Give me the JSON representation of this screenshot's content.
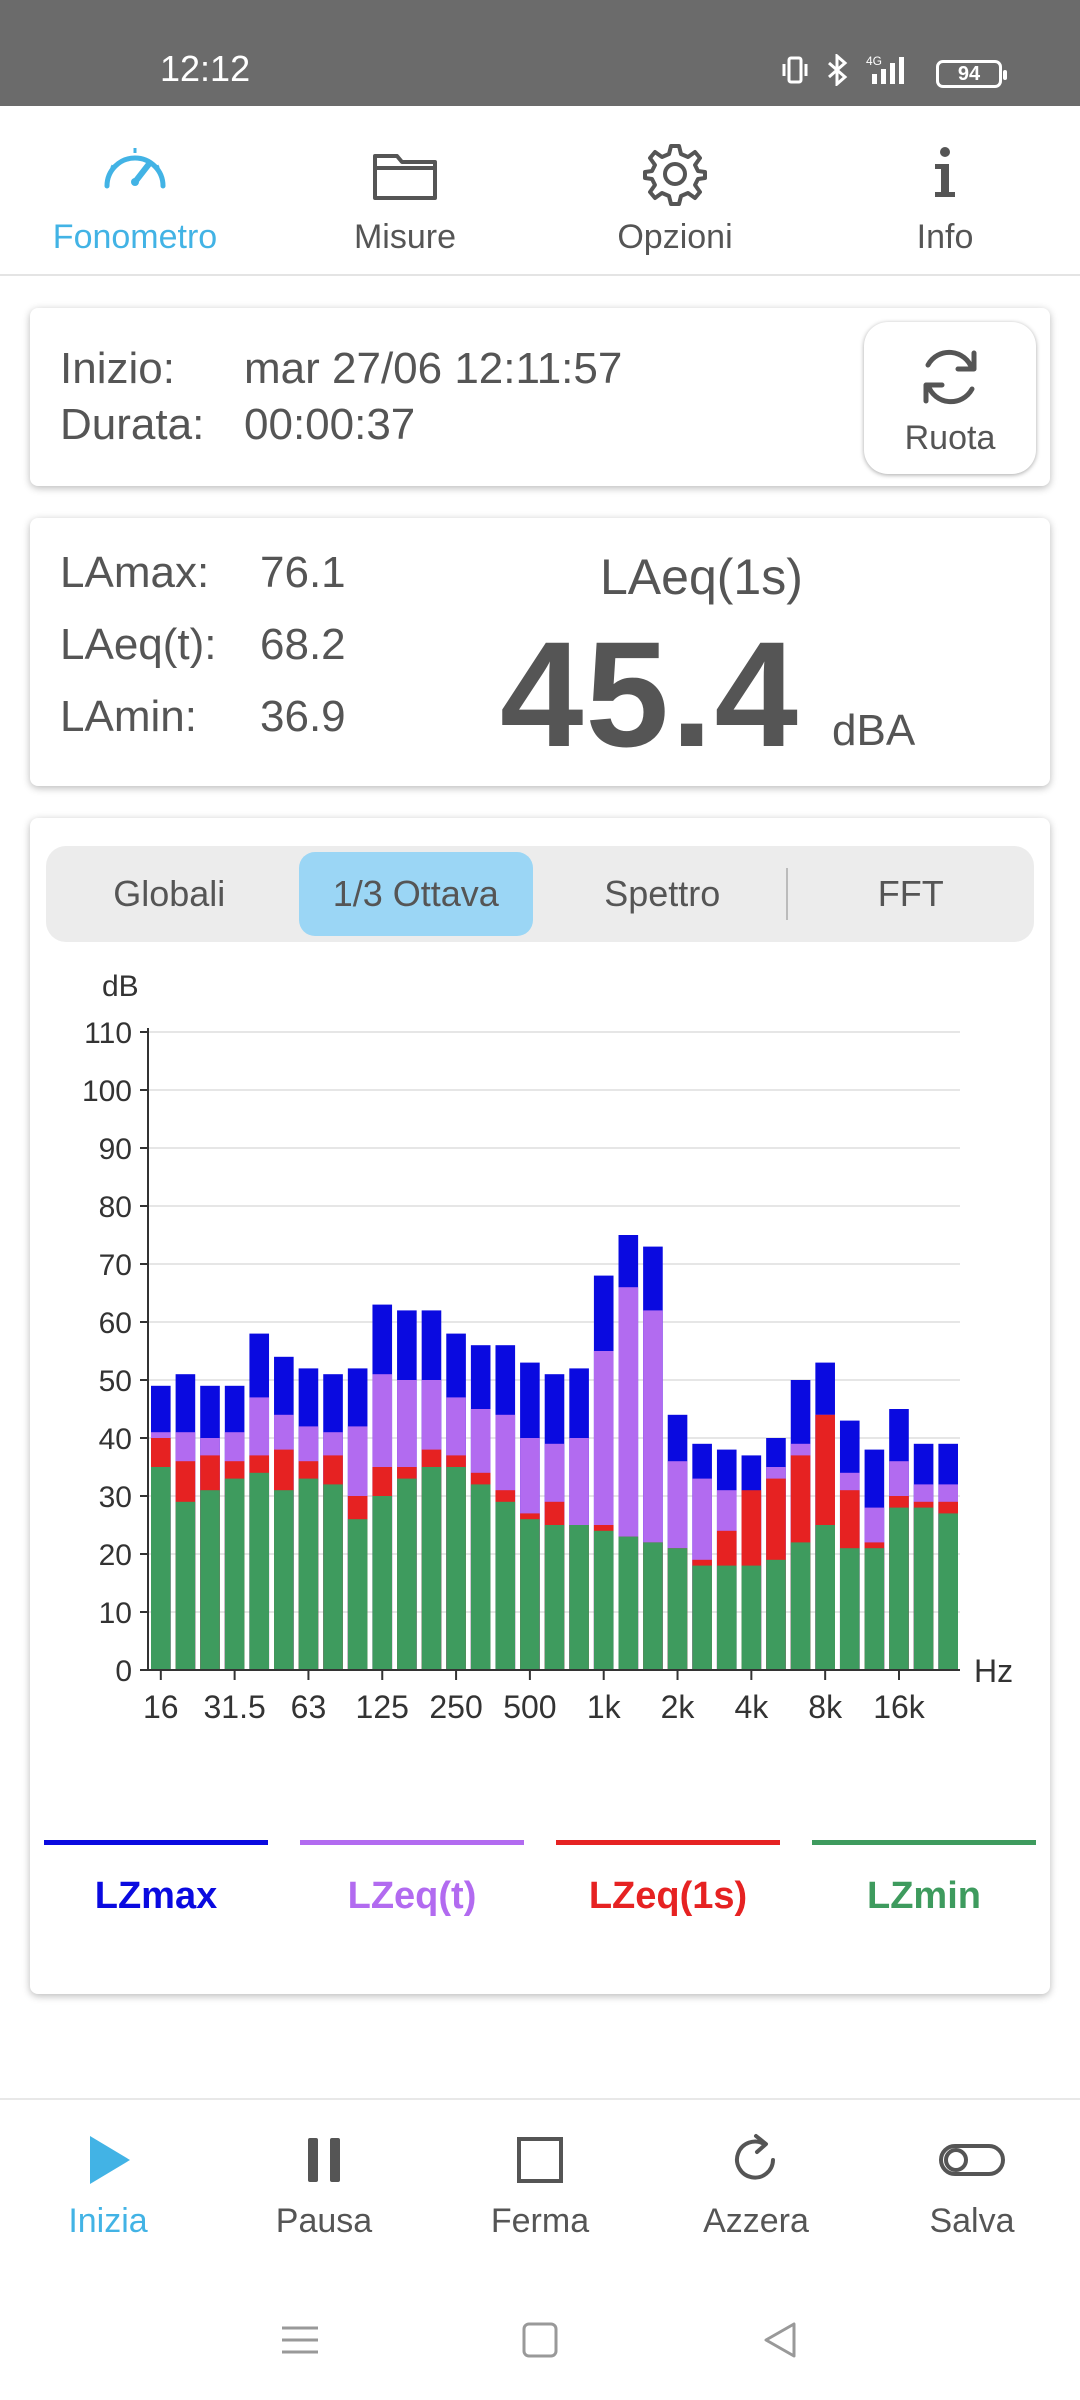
{
  "status_bar": {
    "time": "12:12",
    "battery": "94",
    "network": "4G"
  },
  "top_nav": {
    "tabs": [
      {
        "label": "Fonometro",
        "icon": "speedometer-icon",
        "active": true
      },
      {
        "label": "Misure",
        "icon": "folder-icon",
        "active": false
      },
      {
        "label": "Opzioni",
        "icon": "gear-icon",
        "active": false
      },
      {
        "label": "Info",
        "icon": "info-icon",
        "active": false
      }
    ]
  },
  "session": {
    "start_label": "Inizio:",
    "start_value": "mar 27/06 12:11:57",
    "duration_label": "Durata:",
    "duration_value": "00:00:37",
    "rotate_button": "Ruota"
  },
  "levels": {
    "lamax_label": "LAmax:",
    "lamax_value": "76.1",
    "laeq_t_label": "LAeq(t):",
    "laeq_t_value": "68.2",
    "lamin_label": "LAmin:",
    "lamin_value": "36.9",
    "main_label": "LAeq(1s)",
    "main_value": "45.4",
    "main_unit": "dBA"
  },
  "chart_tabs": [
    {
      "label": "Globali",
      "active": false
    },
    {
      "label": "1/3 Ottava",
      "active": true
    },
    {
      "label": "Spettro",
      "active": false
    },
    {
      "label": "FFT",
      "active": false
    }
  ],
  "chart_data": {
    "type": "bar",
    "stacked_overlay": true,
    "ylabel": "dB",
    "xlabel": "Hz",
    "ylim": [
      0,
      110
    ],
    "yticks": [
      0,
      10,
      20,
      30,
      40,
      50,
      60,
      70,
      80,
      90,
      100,
      110
    ],
    "xtick_labels": [
      "16",
      "31.5",
      "63",
      "125",
      "250",
      "500",
      "1k",
      "2k",
      "4k",
      "8k",
      "16k"
    ],
    "grid": true,
    "bands": 33,
    "series": [
      {
        "name": "LZmax",
        "color": "#0a0ae0",
        "values": [
          49,
          51,
          49,
          49,
          58,
          54,
          52,
          51,
          52,
          63,
          62,
          62,
          58,
          56,
          56,
          53,
          51,
          52,
          68,
          75,
          73,
          44,
          39,
          38,
          37,
          40,
          50,
          53,
          43,
          38,
          45,
          39,
          39
        ]
      },
      {
        "name": "LZeq(t)",
        "color": "#b26bf0",
        "values": [
          41,
          41,
          40,
          41,
          47,
          44,
          42,
          41,
          42,
          51,
          50,
          50,
          47,
          45,
          44,
          40,
          39,
          40,
          55,
          66,
          62,
          36,
          33,
          31,
          30,
          35,
          39,
          44,
          34,
          28,
          36,
          32,
          32
        ]
      },
      {
        "name": "LZeq(1s)",
        "color": "#e62222",
        "values": [
          40,
          36,
          37,
          36,
          37,
          38,
          36,
          37,
          30,
          35,
          35,
          38,
          37,
          34,
          31,
          27,
          29,
          25,
          25,
          23,
          22,
          21,
          19,
          24,
          31,
          33,
          37,
          44,
          31,
          22,
          30,
          29,
          29
        ]
      },
      {
        "name": "LZmin",
        "color": "#3e9b5e",
        "values": [
          35,
          29,
          31,
          33,
          34,
          31,
          33,
          32,
          26,
          30,
          33,
          35,
          35,
          32,
          29,
          26,
          25,
          25,
          24,
          23,
          22,
          21,
          18,
          18,
          18,
          19,
          22,
          25,
          21,
          21,
          28,
          28,
          27
        ]
      }
    ],
    "legend_position": "bottom"
  },
  "bottom_nav": {
    "items": [
      {
        "label": "Inizia",
        "icon": "play-icon",
        "active": true
      },
      {
        "label": "Pausa",
        "icon": "pause-icon",
        "active": false
      },
      {
        "label": "Ferma",
        "icon": "stop-icon",
        "active": false
      },
      {
        "label": "Azzera",
        "icon": "reset-icon",
        "active": false
      },
      {
        "label": "Salva",
        "icon": "toggle-icon",
        "active": false
      }
    ]
  }
}
